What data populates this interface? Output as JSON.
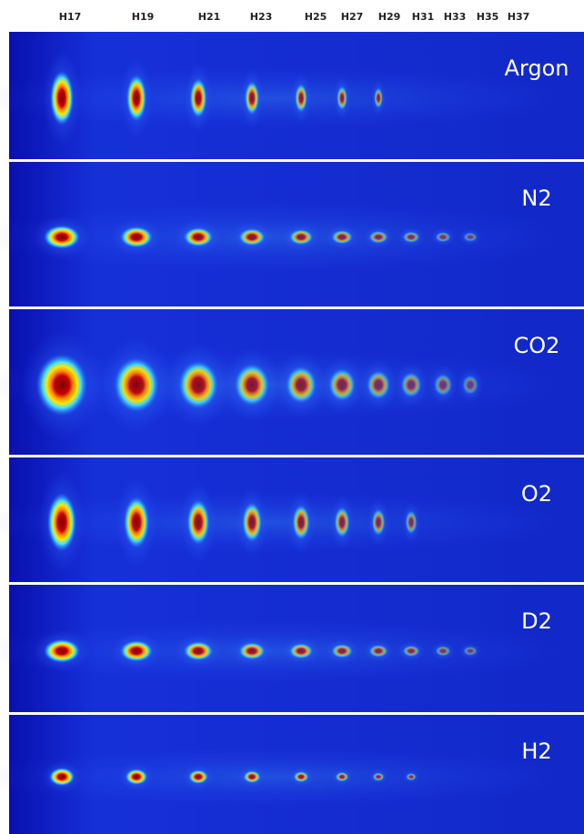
{
  "header": {
    "harmonics": [
      "H17",
      "H19",
      "H21",
      "H23",
      "H25",
      "H27",
      "H29",
      "H31",
      "H33",
      "H35",
      "H37"
    ]
  },
  "panels": [
    {
      "label": "Argon"
    },
    {
      "label": "N2"
    },
    {
      "label": "CO2"
    },
    {
      "label": "O2"
    },
    {
      "label": "D2"
    },
    {
      "label": "H2"
    }
  ]
}
